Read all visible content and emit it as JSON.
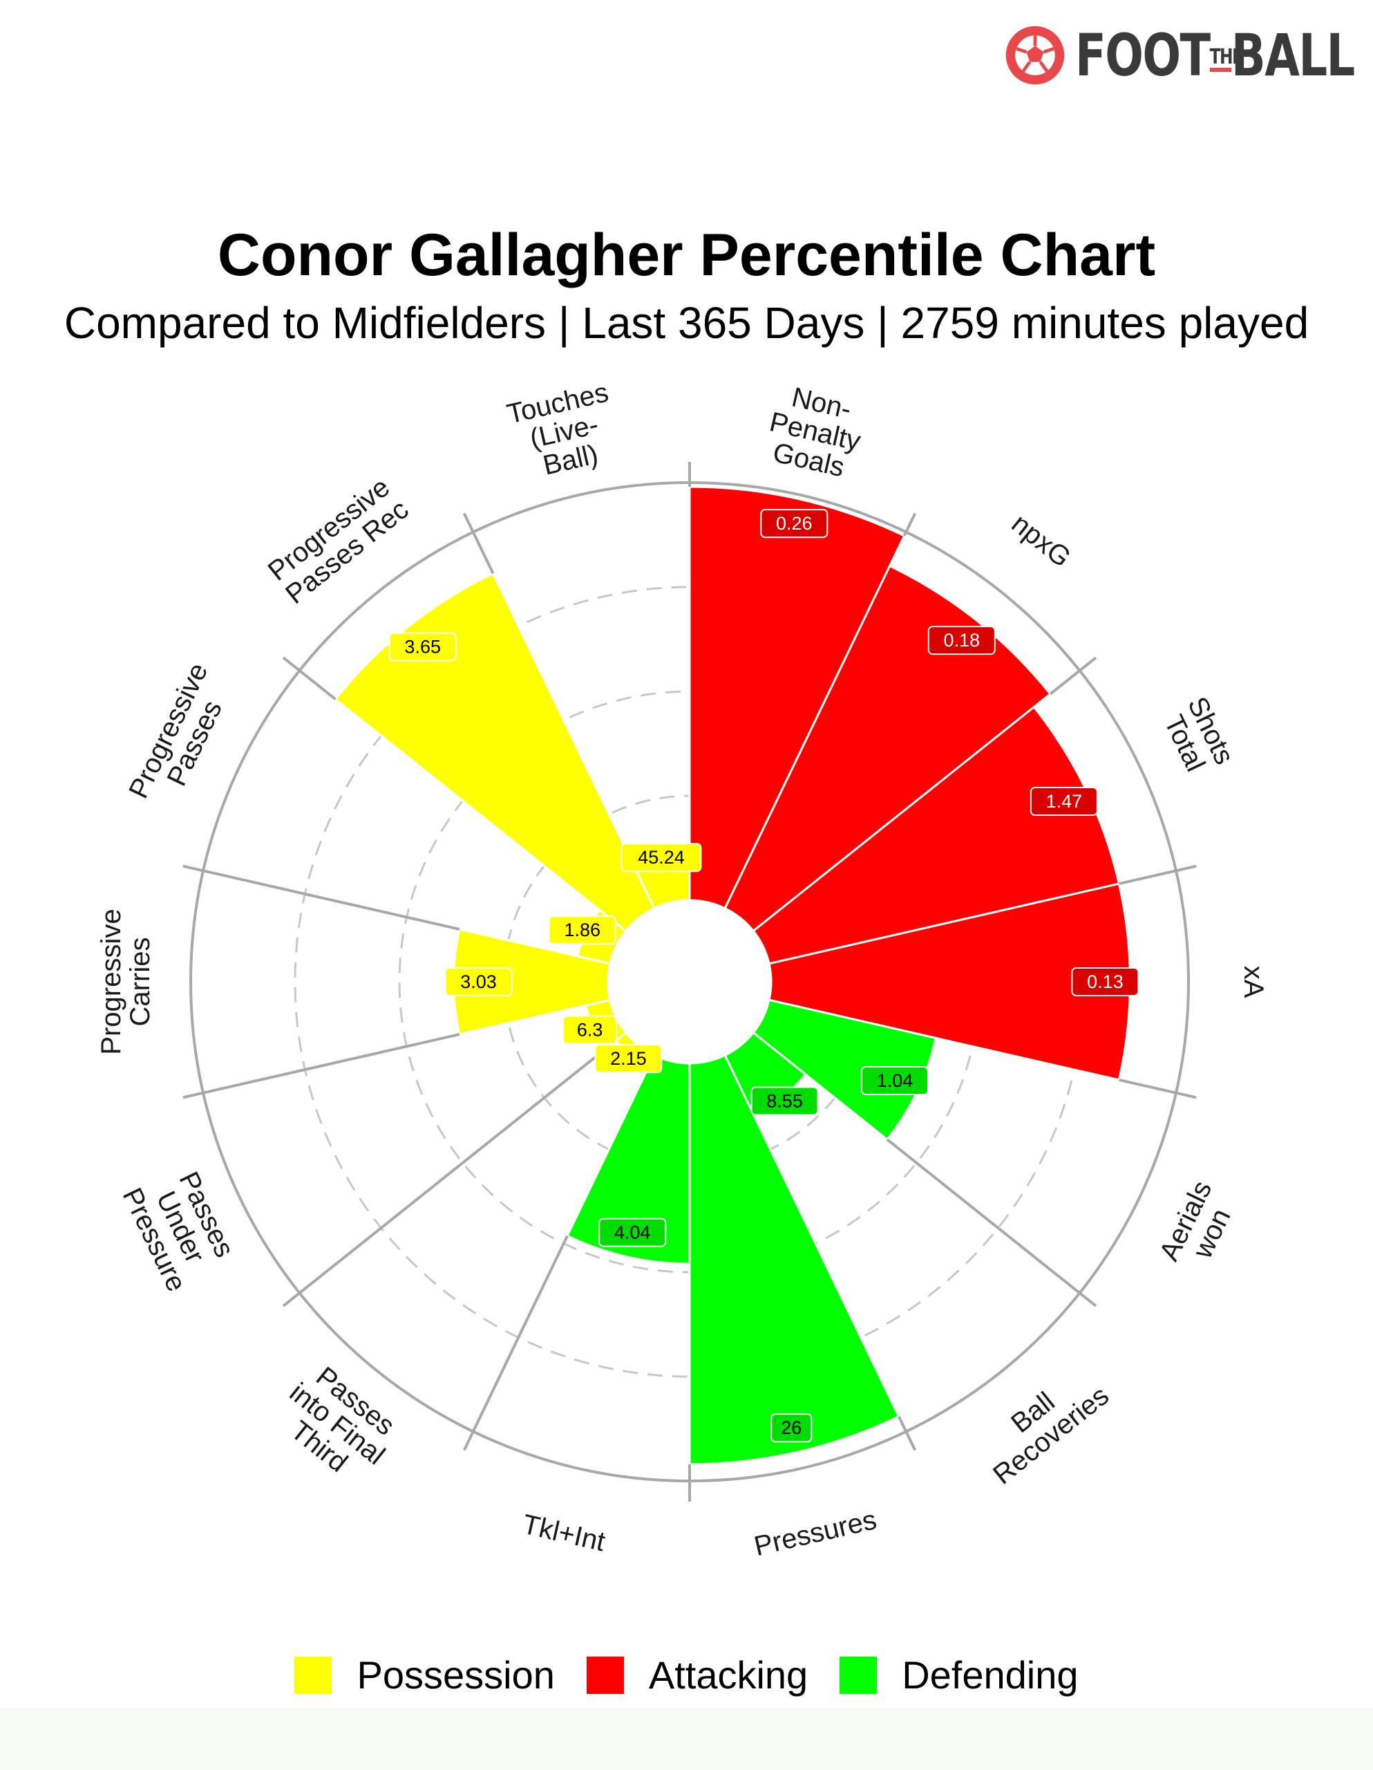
{
  "brand": {
    "name": "FOOT THE BALL",
    "text": "FOOT",
    "text_small": "THE",
    "text_end": "BALL",
    "accent": "#e8474c"
  },
  "chart_data": {
    "type": "polar-bar",
    "title": "Conor Gallagher Percentile Chart",
    "subtitle": "Compared to Midfielders | Last 365 Days | 2759 minutes played",
    "rlim": [
      0,
      100
    ],
    "grid": true,
    "legend_position": "bottom",
    "categories": [
      {
        "label": "Non-\nPenalty\nGoals",
        "value_label": "0.26",
        "percentile": 99,
        "group": "Attacking"
      },
      {
        "label": "npxG",
        "value_label": "0.18",
        "percentile": 91,
        "group": "Attacking"
      },
      {
        "label": "Shots\nTotal",
        "value_label": "1.47",
        "percentile": 86,
        "group": "Attacking"
      },
      {
        "label": "xA",
        "value_label": "0.13",
        "percentile": 86,
        "group": "Attacking"
      },
      {
        "label": "Aerials\nwon",
        "value_label": "1.04",
        "percentile": 41,
        "group": "Defending"
      },
      {
        "label": "Ball\nRecoveries",
        "value_label": "8.55",
        "percentile": 16,
        "group": "Defending"
      },
      {
        "label": "Pressures",
        "value_label": "26",
        "percentile": 96,
        "group": "Defending"
      },
      {
        "label": "Tkl+Int",
        "value_label": "4.04",
        "percentile": 48,
        "group": "Defending"
      },
      {
        "label": "Passes\ninto Final\nThird",
        "value_label": "2.15",
        "percentile": 3,
        "group": "Possession"
      },
      {
        "label": "Passes\nUnder\nPressure",
        "value_label": "6.3",
        "percentile": 6,
        "group": "Possession"
      },
      {
        "label": "Progressive\nCarries",
        "value_label": "3.03",
        "percentile": 37,
        "group": "Possession"
      },
      {
        "label": "Progressive\nPasses",
        "value_label": "1.86",
        "percentile": 8,
        "group": "Possession"
      },
      {
        "label": "Progressive\nPasses Rec",
        "value_label": "3.65",
        "percentile": 89,
        "group": "Possession"
      },
      {
        "label": "Touches\n(Live-\nBall)",
        "value_label": "45.24",
        "percentile": 10,
        "group": "Possession"
      }
    ],
    "legend": [
      {
        "name": "Possession",
        "color": "#ffff00"
      },
      {
        "name": "Attacking",
        "color": "#ff0000"
      },
      {
        "name": "Defending",
        "color": "#00ff00"
      }
    ],
    "group_label_colors": {
      "Possession": "#ffff00",
      "Attacking": "#d90000",
      "Defending": "#00dd00"
    }
  }
}
